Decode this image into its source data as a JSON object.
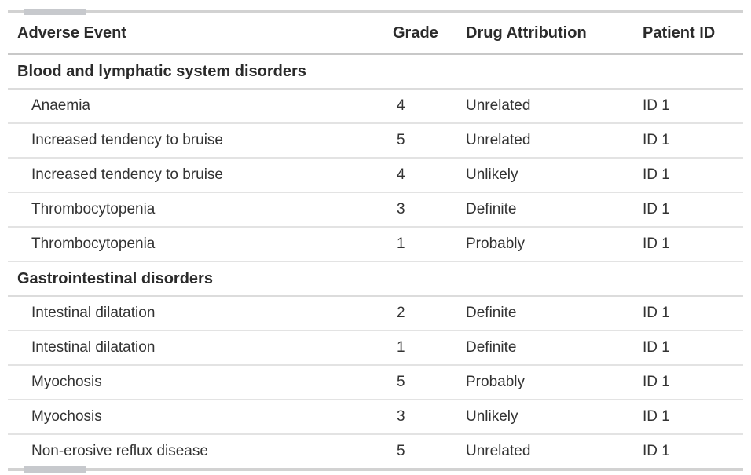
{
  "table": {
    "columns": [
      {
        "key": "adverse_event",
        "label": "Adverse Event"
      },
      {
        "key": "grade",
        "label": "Grade"
      },
      {
        "key": "drug_attribution",
        "label": "Drug Attribution"
      },
      {
        "key": "patient_id",
        "label": "Patient ID"
      }
    ],
    "groups": [
      {
        "label": "Blood and lymphatic system disorders",
        "rows": [
          {
            "adverse_event": "Anaemia",
            "grade": "4",
            "drug_attribution": "Unrelated",
            "patient_id": "ID 1"
          },
          {
            "adverse_event": "Increased tendency to bruise",
            "grade": "5",
            "drug_attribution": "Unrelated",
            "patient_id": "ID 1"
          },
          {
            "adverse_event": "Increased tendency to bruise",
            "grade": "4",
            "drug_attribution": "Unlikely",
            "patient_id": "ID 1"
          },
          {
            "adverse_event": "Thrombocytopenia",
            "grade": "3",
            "drug_attribution": "Definite",
            "patient_id": "ID 1"
          },
          {
            "adverse_event": "Thrombocytopenia",
            "grade": "1",
            "drug_attribution": "Probably",
            "patient_id": "ID 1"
          }
        ]
      },
      {
        "label": "Gastrointestinal disorders",
        "rows": [
          {
            "adverse_event": "Intestinal dilatation",
            "grade": "2",
            "drug_attribution": "Definite",
            "patient_id": "ID 1"
          },
          {
            "adverse_event": "Intestinal dilatation",
            "grade": "1",
            "drug_attribution": "Definite",
            "patient_id": "ID 1"
          },
          {
            "adverse_event": "Myochosis",
            "grade": "5",
            "drug_attribution": "Probably",
            "patient_id": "ID 1"
          },
          {
            "adverse_event": "Myochosis",
            "grade": "3",
            "drug_attribution": "Unlikely",
            "patient_id": "ID 1"
          },
          {
            "adverse_event": "Non-erosive reflux disease",
            "grade": "5",
            "drug_attribution": "Unrelated",
            "patient_id": "ID 1"
          }
        ]
      }
    ]
  },
  "colors": {
    "text_body": "#333333",
    "text_bold": "#2b2b2b",
    "rule_outer": "#d2d2d2",
    "rule_header": "#c8c8c8",
    "rule_group": "#dcdcdc",
    "rule_row": "#e3e3e3",
    "edge_accent": "#c7c9cd"
  }
}
